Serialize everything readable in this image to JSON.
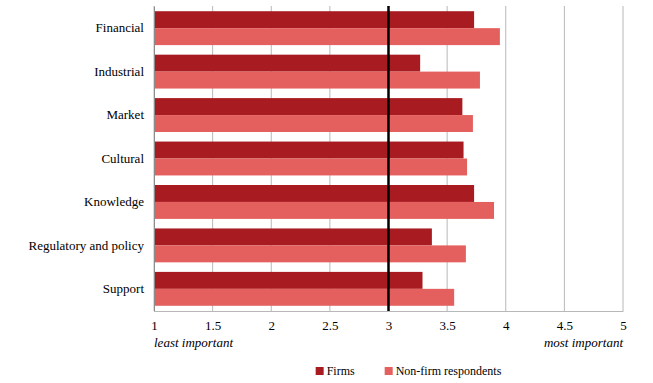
{
  "chart_data": {
    "type": "bar",
    "orientation": "horizontal",
    "categories": [
      "Financial",
      "Industrial",
      "Market",
      "Cultural",
      "Knowledge",
      "Regulatory and policy",
      "Support"
    ],
    "series": [
      {
        "name": "Firms",
        "color": "#a81b21",
        "values": [
          3.73,
          3.27,
          3.63,
          3.64,
          3.73,
          3.37,
          3.29
        ]
      },
      {
        "name": "Non-firm respondents",
        "color": "#e4605f",
        "values": [
          3.95,
          3.78,
          3.72,
          3.67,
          3.9,
          3.66,
          3.56
        ]
      }
    ],
    "xlim": [
      1,
      5
    ],
    "xticks": [
      1,
      1.5,
      2,
      2.5,
      3,
      3.5,
      4,
      4.5,
      5
    ],
    "grid": true,
    "legend": "bottom",
    "annotations": [
      "least important",
      "most important"
    ]
  }
}
